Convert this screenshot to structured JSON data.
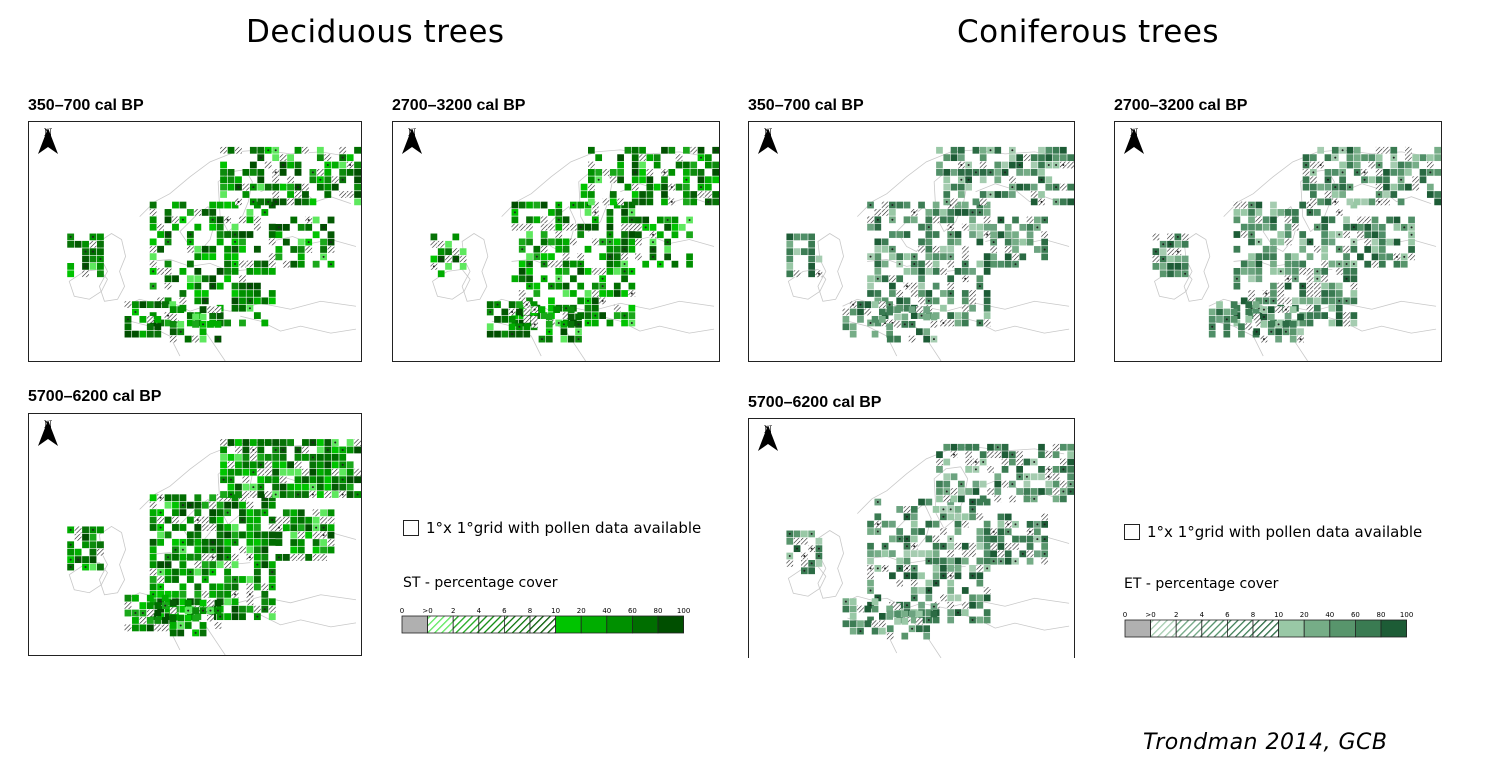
{
  "titles": {
    "deciduous": "Deciduous trees",
    "coniferous": "Coniferous trees"
  },
  "panels": [
    {
      "label": "350–700 cal BP",
      "group": "deciduous",
      "density": 0.55,
      "seed": 11
    },
    {
      "label": "2700–3200 cal BP",
      "group": "deciduous",
      "density": 0.62,
      "seed": 23
    },
    {
      "label": "5700–6200 cal BP",
      "group": "deciduous",
      "density": 0.78,
      "seed": 37
    },
    {
      "label": "350–700 cal BP",
      "group": "coniferous",
      "density": 0.58,
      "seed": 41
    },
    {
      "label": "2700–3200 cal BP",
      "group": "coniferous",
      "density": 0.64,
      "seed": 53
    },
    {
      "label": "5700–6200 cal BP",
      "group": "coniferous",
      "density": 0.6,
      "seed": 67
    }
  ],
  "north_label": "N",
  "legends": {
    "grid_text": "1°x 1°grid with pollen data available",
    "deciduous_title": "ST - percentage cover",
    "coniferous_title": "ET - percentage cover",
    "tick_labels": [
      "0",
      ">0",
      "2",
      "4",
      "6",
      "8",
      "10",
      "20",
      "40",
      "60",
      "80",
      "100"
    ]
  },
  "colors": {
    "deciduous": [
      "#b0b0b0",
      "#5ee85e",
      "#1aa81a",
      "#0c8a0c",
      "#077207",
      "#045a04",
      "#00c400",
      "#00ad00",
      "#009000",
      "#006e00",
      "#004f00"
    ],
    "coniferous": [
      "#b0b0b0",
      "#a5ccb0",
      "#6ca380",
      "#508f68",
      "#3d7d55",
      "#2b6b44",
      "#99c8a6",
      "#76ad87",
      "#58956c",
      "#3a7b52",
      "#1d5c36"
    ]
  },
  "citation": "Trondman 2014, GCB"
}
